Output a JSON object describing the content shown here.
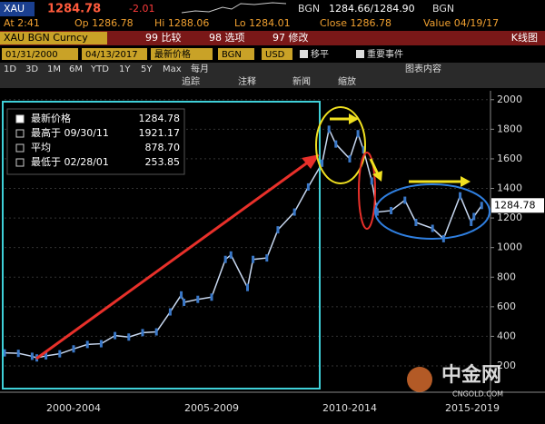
{
  "terminal": {
    "ticker": "XAU",
    "last": "1284.78",
    "change": "-2.01",
    "src1": "BGN",
    "bidask": "1284.66/1284.90",
    "src2": "BGN",
    "row2": [
      "At 2:41",
      "Op 1286.78",
      "Hi 1288.06",
      "Lo 1284.01",
      "Close 1286.78",
      "Value 04/19/17"
    ],
    "security": "XAU BGN Curncy",
    "menu": [
      "99 比较",
      "98 选项",
      "97 修改"
    ],
    "chart_kind": "K线图",
    "start_date": "01/31/2000",
    "end_date": "04/13/2017",
    "field": "最新价格",
    "source": "BGN",
    "currency": "USD",
    "options": [
      "移平",
      "重要事件"
    ],
    "periods": [
      "1D",
      "3D",
      "1M",
      "6M",
      "YTD",
      "1Y",
      "5Y",
      "Max",
      "每月"
    ],
    "contents": "图表内容",
    "tools": [
      "追踪",
      "注释",
      "新闻",
      "缩放"
    ],
    "watermark": [
      "中金网",
      "CNGOLD.COM"
    ]
  },
  "chart_data": {
    "type": "line",
    "legend_stats": [
      {
        "label": "最新价格",
        "value": "1284.78"
      },
      {
        "label": "最高于 09/30/11",
        "value": "1921.17"
      },
      {
        "label": "平均",
        "value": "878.70"
      },
      {
        "label": "最低于 02/28/01",
        "value": "253.85"
      }
    ],
    "last_label": "1284.78",
    "x": [
      2000.0,
      2000.5,
      2001.0,
      2001.17,
      2001.5,
      2002.0,
      2002.5,
      2003.0,
      2003.5,
      2004.0,
      2004.5,
      2005.0,
      2005.5,
      2006.0,
      2006.4,
      2006.5,
      2007.0,
      2007.5,
      2008.0,
      2008.2,
      2008.8,
      2009.0,
      2009.5,
      2009.9,
      2010.5,
      2011.0,
      2011.5,
      2011.75,
      2012.0,
      2012.5,
      2012.8,
      2013.0,
      2013.3,
      2013.5,
      2014.0,
      2014.5,
      2014.9,
      2015.5,
      2015.9,
      2016.5,
      2016.9,
      2017.0,
      2017.28
    ],
    "series": [
      {
        "name": "XAU",
        "color": "#c8d8f0",
        "values": [
          288,
          285,
          265,
          254,
          268,
          282,
          315,
          345,
          350,
          405,
          395,
          425,
          430,
          565,
          680,
          630,
          650,
          665,
          920,
          950,
          730,
          920,
          930,
          1120,
          1240,
          1410,
          1570,
          1800,
          1700,
          1600,
          1770,
          1660,
          1450,
          1240,
          1250,
          1320,
          1170,
          1130,
          1060,
          1350,
          1170,
          1210,
          1284.78
        ]
      }
    ],
    "xlim": [
      2000,
      2017.6
    ],
    "xticks": [
      {
        "value": 2002.5,
        "label": "2000-2004"
      },
      {
        "value": 2007.5,
        "label": "2005-2009"
      },
      {
        "value": 2012.5,
        "label": "2010-2014"
      },
      {
        "value": 2017.5,
        "label": "2015-2019"
      }
    ],
    "ylim": [
      65,
      2060
    ],
    "yticks": [
      200,
      400,
      600,
      800,
      1000,
      1200,
      1400,
      1600,
      1800,
      2000
    ],
    "grid": true
  }
}
